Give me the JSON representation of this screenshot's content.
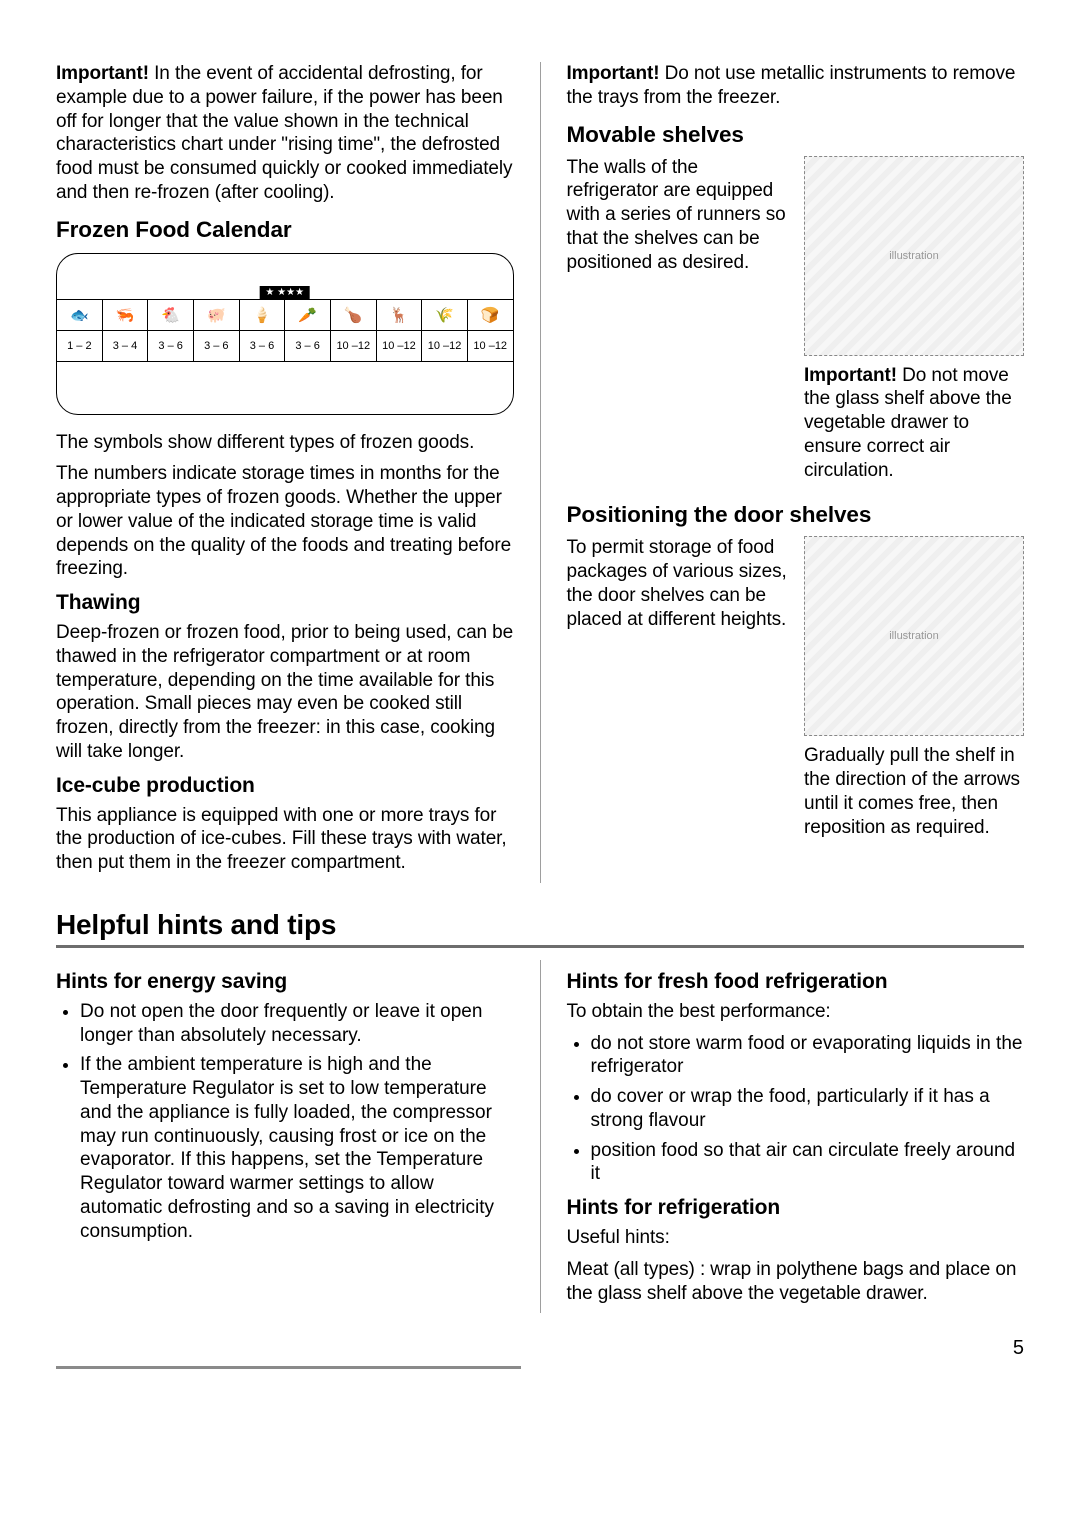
{
  "col1": {
    "important_defrost": {
      "prefix": "Important!",
      "text": " In the event of accidental defrosting, for example due to a power failure, if the power has been off for longer that the value shown in the technical characteristics chart under \"rising time\", the defrosted food must be consumed quickly or cooked immediately and then re-frozen (after cooling)."
    },
    "calendar": {
      "title": "Frozen Food Calendar",
      "tag": "★ ★★★",
      "icons": [
        "🐟",
        "🦐",
        "🐔",
        "🐖",
        "🍦",
        "🥕",
        "🍗",
        "🦌",
        "🌾",
        "🍞"
      ],
      "months": [
        "1 – 2",
        "3 – 4",
        "3 – 6",
        "3 – 6",
        "3 – 6",
        "3 – 6",
        "10 –12",
        "10 –12",
        "10 –12",
        "10 –12"
      ],
      "explain1": "The symbols show different types of frozen goods.",
      "explain2": "The numbers indicate storage times in months for the appropriate types of frozen goods. Whether the upper or lower value of the indicated storage time is valid depends on the quality of the foods and treating before freezing."
    },
    "thawing": {
      "title": "Thawing",
      "body": "Deep-frozen or frozen food, prior to being used, can be thawed in the refrigerator compartment or at room temperature, depending on the time available for this operation. Small pieces may even be cooked still frozen, directly from the freezer: in this case, cooking will take longer."
    },
    "ice": {
      "title": "Ice-cube production",
      "body": "This appliance is equipped with one or more trays for the production of ice-cubes. Fill these trays with water, then put them in the freezer compartment."
    }
  },
  "col2": {
    "metallic": {
      "prefix": "Important!",
      "text": " Do not use metallic instruments to remove the trays from the freezer."
    },
    "movable": {
      "title": "Movable shelves",
      "body": "The walls of the refrigerator are equipped with a series of runners so that the shelves can be positioned as desired.",
      "note_prefix": "Important!",
      "note_text": " Do not move the glass shelf above the vegetable drawer to ensure correct air circulation."
    },
    "door": {
      "title": "Positioning the door shelves",
      "body": "To permit storage of food packages of various sizes, the door shelves can be placed at different heights.",
      "note": "Gradually pull the shelf in the direction of the arrows until it comes free, then reposition as required."
    }
  },
  "hints": {
    "title": "Helpful hints and tips",
    "left": {
      "title": "Hints for energy saving",
      "items": [
        "Do not open the door frequently or leave it open longer than absolutely necessary.",
        "If the ambient temperature is high and the Temperature Regulator is set to low temperature and the appliance is fully loaded, the compressor may run continuously, causing frost or ice on the evaporator. If this happens, set the Temperature Regulator toward warmer settings to allow automatic defrosting and so a saving in electricity consumption."
      ]
    },
    "right": {
      "title": "Hints for fresh food refrigeration",
      "lead": "To obtain the best performance:",
      "items": [
        "do not store warm food or evaporating liquids in the refrigerator",
        "do cover or wrap the food, particularly if it has a strong flavour",
        "position food so that air can circulate freely around it"
      ],
      "title2": "Hints for refrigeration",
      "lead2": "Useful hints:",
      "meat": "Meat (all types) : wrap in polythene bags and place on the glass shelf above the vegetable drawer."
    }
  },
  "page_number": "5"
}
